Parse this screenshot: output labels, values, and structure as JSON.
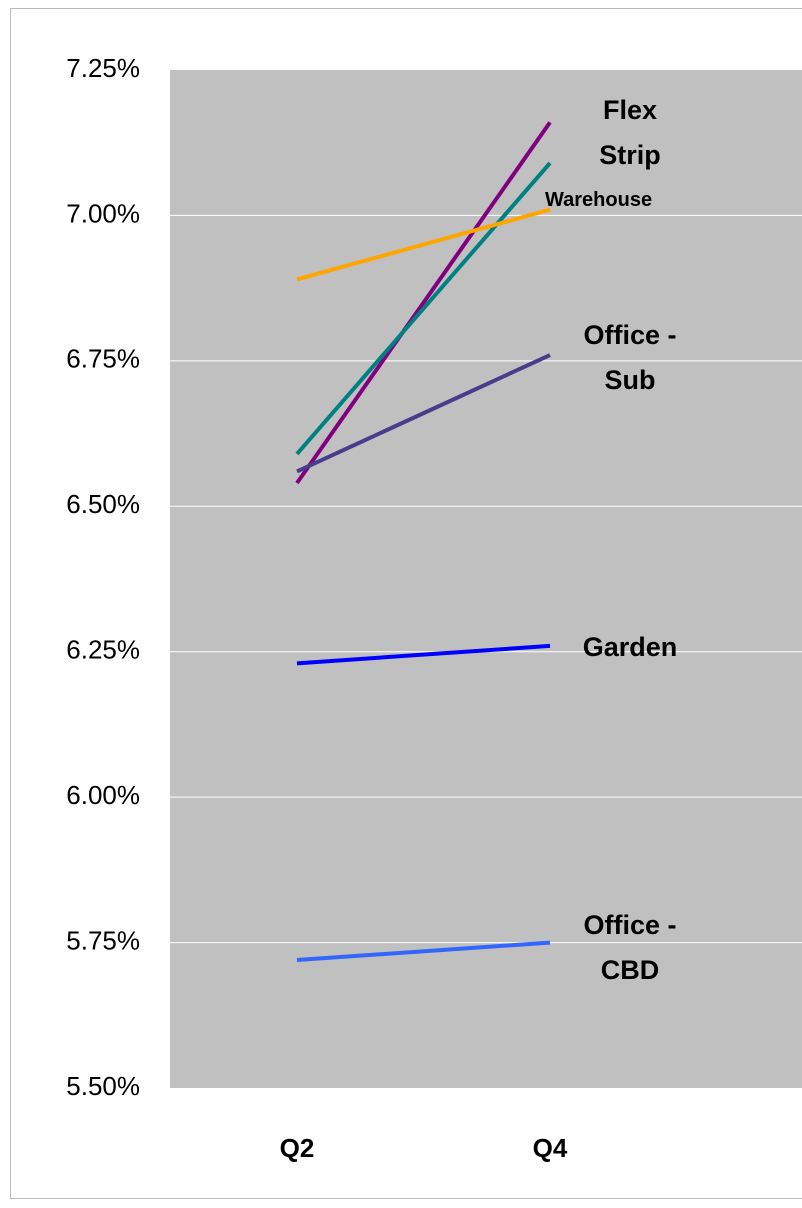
{
  "chart_data": {
    "type": "line",
    "categories": [
      "Q2",
      "Q4"
    ],
    "series": [
      {
        "name": "Flex",
        "color": "#800080",
        "values": [
          6.54,
          7.16
        ]
      },
      {
        "name": "Strip",
        "color": "#008080",
        "values": [
          6.59,
          7.09
        ]
      },
      {
        "name": "Warehouse",
        "color": "#FFA500",
        "values": [
          6.89,
          7.01
        ]
      },
      {
        "name": "Office - Sub",
        "color": "#483D8B",
        "values": [
          6.56,
          6.76
        ]
      },
      {
        "name": "Garden",
        "color": "#0000FF",
        "values": [
          6.23,
          6.26
        ]
      },
      {
        "name": "Office - CBD",
        "color": "#3366FF",
        "values": [
          5.72,
          5.75
        ]
      }
    ],
    "ylim": [
      5.5,
      7.25
    ],
    "yticks": [
      {
        "value": 5.5,
        "label": "5.50%"
      },
      {
        "value": 5.75,
        "label": "5.75%"
      },
      {
        "value": 6,
        "label": "6.00%"
      },
      {
        "value": 6.25,
        "label": "6.25%"
      },
      {
        "value": 6.5,
        "label": "6.50%"
      },
      {
        "value": 6.75,
        "label": "6.75%"
      },
      {
        "value": 7,
        "label": "7.00%"
      },
      {
        "value": 7.25,
        "label": "7.25%"
      }
    ],
    "grid": true
  }
}
